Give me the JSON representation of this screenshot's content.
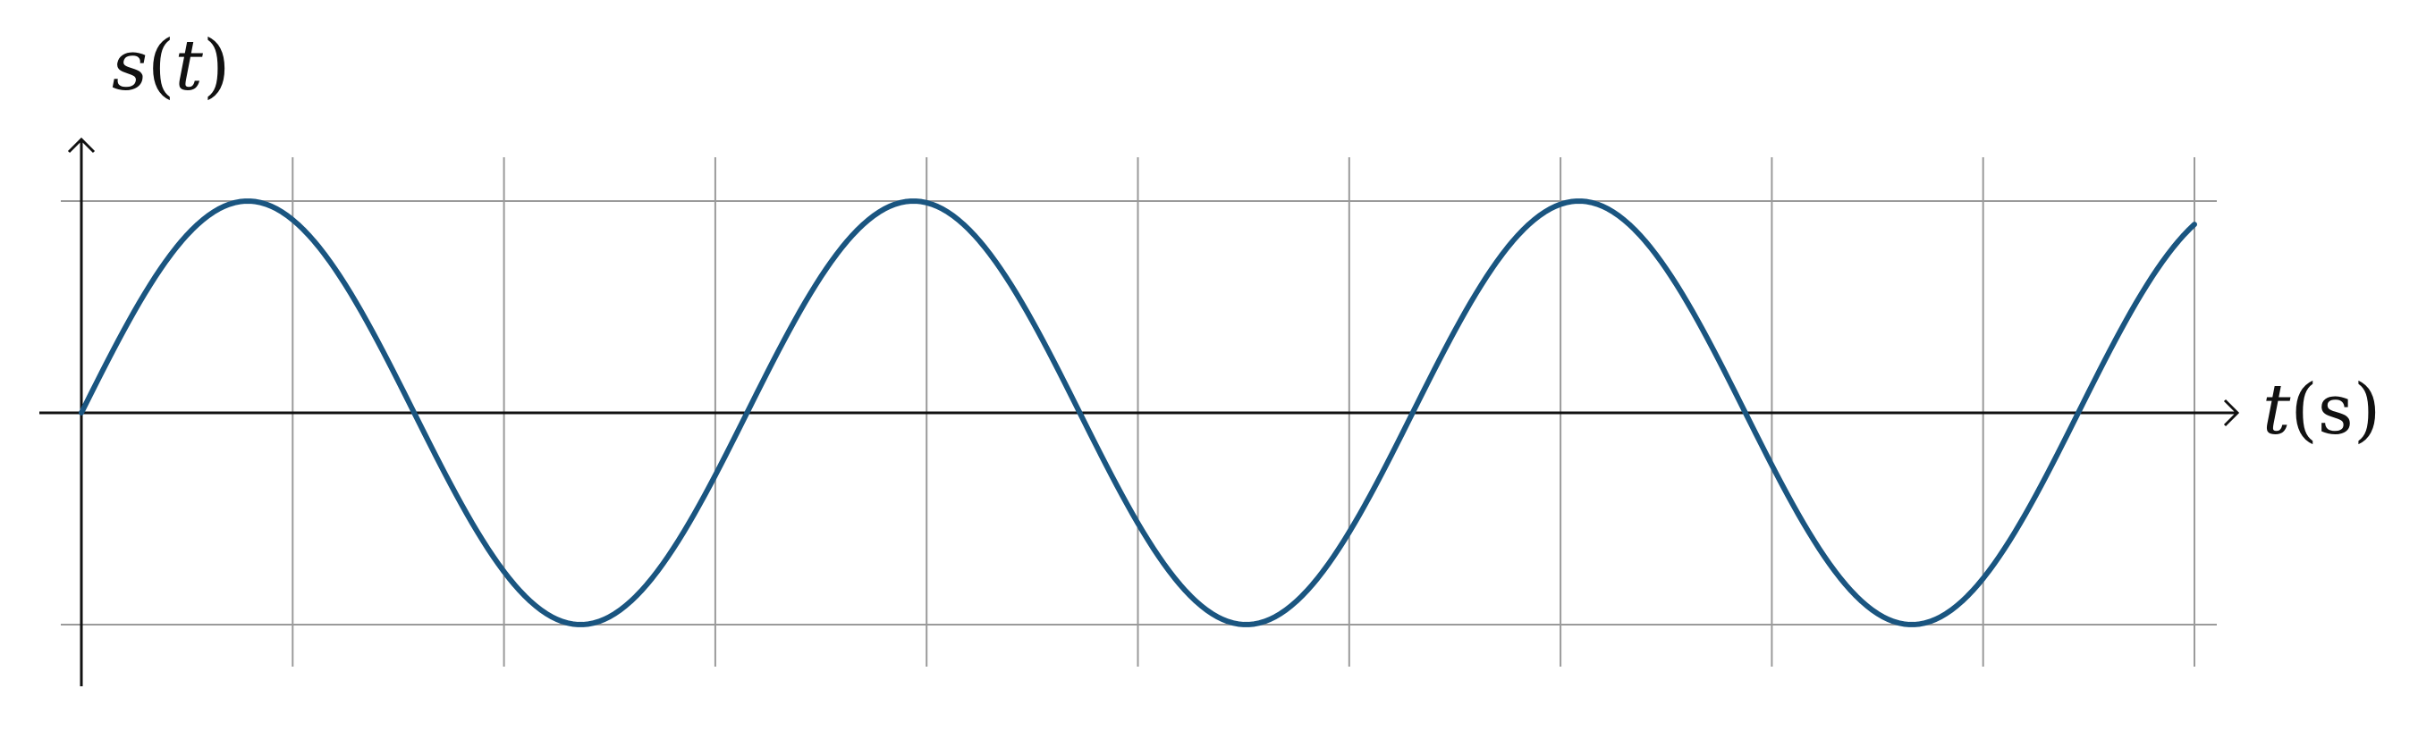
{
  "chart_data": {
    "type": "line",
    "title": "",
    "ylabel": {
      "fn": "s",
      "paren_open": "(",
      "var": "t",
      "paren_close": ")"
    },
    "xlabel": {
      "var": "t",
      "paren_open": "(",
      "unit": "s",
      "paren_close": ")"
    },
    "xlim": [
      0,
      10
    ],
    "ylim": [
      -1,
      1
    ],
    "grid": true,
    "x_gridlines": [
      1,
      2,
      3,
      4,
      5,
      6,
      7,
      8,
      9,
      10
    ],
    "y_gridlines": [
      -1,
      1
    ],
    "series": [
      {
        "color": "#1a5580",
        "function": "sine",
        "amplitude": 1,
        "period": 3.15,
        "x_start": 0,
        "x_end": 10
      }
    ]
  }
}
